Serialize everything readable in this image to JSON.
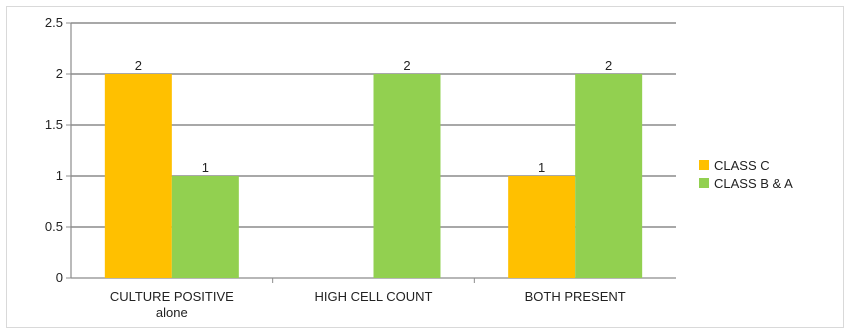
{
  "chart_data": {
    "type": "bar",
    "title": "",
    "xlabel": "",
    "ylabel": "",
    "ylim": [
      0,
      2.5
    ],
    "yticks": [
      "0",
      "0.5",
      "1",
      "1.5",
      "2",
      "2.5"
    ],
    "grid": true,
    "legend_position": "right",
    "categories": [
      [
        "CULTURE POSITIVE",
        "alone"
      ],
      [
        "HIGH CELL COUNT"
      ],
      [
        "BOTH PRESENT"
      ]
    ],
    "series": [
      {
        "name": "CLASS C",
        "color": "#ffc000",
        "values": [
          2,
          null,
          1
        ]
      },
      {
        "name": "CLASS B & A",
        "color": "#92d050",
        "values": [
          1,
          2,
          2
        ]
      }
    ]
  }
}
